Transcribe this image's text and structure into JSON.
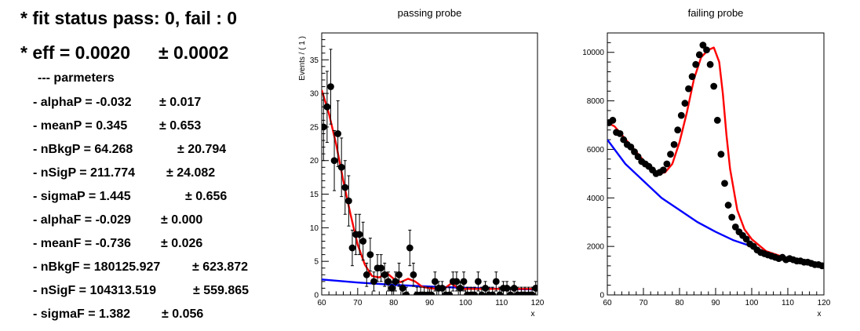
{
  "summary": {
    "fit_status": "* fit status pass: 0, fail : 0",
    "eff_label": "* eff = 0.0020",
    "eff_err": "± 0.0002",
    "params_header": "--- parmeters",
    "params": [
      {
        "label": "- alphaP = -0.032",
        "err": "± 0.017"
      },
      {
        "label": "- meanP = 0.345",
        "err": "± 0.653"
      },
      {
        "label": "- nBkgP = 64.268",
        "err": "± 20.794"
      },
      {
        "label": "- nSigP = 211.774",
        "err": "± 24.082"
      },
      {
        "label": "- sigmaP = 1.445",
        "err": "± 0.656"
      },
      {
        "label": "- alphaF = -0.029",
        "err": "± 0.000"
      },
      {
        "label": "- meanF = -0.736",
        "err": "± 0.026"
      },
      {
        "label": "- nBkgF = 180125.927",
        "err": "± 623.872"
      },
      {
        "label": "- nSigF = 104313.519",
        "err": "± 559.865"
      },
      {
        "label": "- sigmaF = 1.382",
        "err": "± 0.056"
      }
    ]
  },
  "colors": {
    "data": "#000000",
    "total_fit": "#ff0000",
    "background": "#0000ff"
  },
  "chart_data": [
    {
      "type": "scatter",
      "title": "passing probe",
      "xlabel": "x",
      "ylabel": "Events / ( 1 )",
      "xlim": [
        60,
        120
      ],
      "ylim": [
        0,
        39
      ],
      "xticks": [
        60,
        70,
        80,
        90,
        100,
        110,
        120
      ],
      "yticks": [
        0,
        5,
        10,
        15,
        20,
        25,
        30,
        35
      ],
      "grid": false,
      "series": [
        {
          "role": "data",
          "error_bars": "sqrt",
          "x": [
            60.5,
            61.5,
            62.5,
            63.5,
            64.5,
            65.5,
            66.5,
            67.5,
            68.5,
            69.5,
            70.5,
            71.5,
            72.5,
            73.5,
            74.5,
            75.5,
            76.5,
            77.5,
            78.5,
            79.5,
            80.5,
            81.5,
            82.5,
            83.5,
            84.5,
            85.5,
            86.5,
            87.5,
            88.5,
            89.5,
            90.5,
            91.5,
            92.5,
            93.5,
            94.5,
            95.5,
            96.5,
            97.5,
            98.5,
            99.5,
            100.5,
            101.5,
            102.5,
            103.5,
            104.5,
            105.5,
            106.5,
            107.5,
            108.5,
            109.5,
            110.5,
            111.5,
            112.5,
            113.5,
            114.5,
            115.5,
            116.5,
            117.5,
            118.5,
            119.5
          ],
          "y": [
            25,
            28,
            31,
            20,
            24,
            19,
            16,
            14,
            7,
            9,
            9,
            8,
            3,
            6,
            2,
            4,
            4,
            3,
            2,
            1,
            2,
            3,
            1,
            0,
            7,
            3,
            0,
            0,
            0,
            0,
            0,
            2,
            1,
            1,
            0,
            0,
            2,
            2,
            1,
            2,
            0,
            0,
            0,
            2,
            0,
            1,
            0,
            0,
            2,
            0,
            1,
            1,
            0,
            1,
            0,
            0,
            0,
            0,
            0,
            1
          ]
        },
        {
          "role": "total_fit",
          "x": [
            60,
            62,
            64,
            66,
            68,
            70,
            72,
            74,
            76,
            78,
            80,
            82,
            84,
            86,
            88,
            90,
            92,
            94,
            96,
            98,
            100,
            105,
            110,
            115,
            120
          ],
          "y": [
            30.5,
            27,
            22.5,
            17,
            12,
            7.5,
            4.5,
            2.8,
            2.6,
            3.3,
            2.4,
            1.9,
            2.4,
            2.0,
            1.2,
            1.0,
            0.9,
            0.9,
            1.7,
            1.0,
            0.9,
            0.9,
            0.9,
            0.9,
            0.9
          ]
        },
        {
          "role": "background",
          "x": [
            60,
            70,
            80,
            90,
            100,
            110,
            120
          ],
          "y": [
            2.3,
            1.85,
            1.5,
            1.25,
            1.05,
            0.9,
            0.8
          ]
        }
      ]
    },
    {
      "type": "scatter",
      "title": "failing probe",
      "xlabel": "x",
      "ylabel": "",
      "xlim": [
        60,
        120
      ],
      "ylim": [
        0,
        10800
      ],
      "xticks": [
        60,
        70,
        80,
        90,
        100,
        110,
        120
      ],
      "yticks": [
        0,
        2000,
        4000,
        6000,
        8000,
        10000
      ],
      "grid": false,
      "series": [
        {
          "role": "data",
          "error_bars": "none",
          "x": [
            60.5,
            61.5,
            62.5,
            63.5,
            64.5,
            65.5,
            66.5,
            67.5,
            68.5,
            69.5,
            70.5,
            71.5,
            72.5,
            73.5,
            74.5,
            75.5,
            76.5,
            77.5,
            78.5,
            79.5,
            80.5,
            81.5,
            82.5,
            83.5,
            84.5,
            85.5,
            86.5,
            87.5,
            88.5,
            89.5,
            90.5,
            91.5,
            92.5,
            93.5,
            94.5,
            95.5,
            96.5,
            97.5,
            98.5,
            99.5,
            100.5,
            101.5,
            102.5,
            103.5,
            104.5,
            105.5,
            106.5,
            107.5,
            108.5,
            109.5,
            110.5,
            111.5,
            112.5,
            113.5,
            114.5,
            115.5,
            116.5,
            117.5,
            118.5,
            119.5
          ],
          "y": [
            7100,
            7200,
            6700,
            6650,
            6400,
            6200,
            6100,
            5900,
            5700,
            5500,
            5400,
            5300,
            5150,
            5000,
            5050,
            5150,
            5400,
            5800,
            6200,
            6800,
            7400,
            7900,
            8500,
            9000,
            9500,
            9900,
            10300,
            10100,
            9500,
            8600,
            7200,
            5800,
            4600,
            3700,
            3200,
            2800,
            2600,
            2450,
            2300,
            2100,
            2000,
            1850,
            1750,
            1700,
            1650,
            1600,
            1550,
            1500,
            1550,
            1450,
            1500,
            1450,
            1400,
            1400,
            1350,
            1350,
            1300,
            1250,
            1250,
            1200
          ]
        },
        {
          "role": "total_fit",
          "x": [
            60,
            62,
            64,
            66,
            68,
            70,
            72,
            74,
            76,
            78,
            80,
            82,
            84,
            86,
            88,
            89.5,
            91,
            92,
            93,
            94,
            96,
            98,
            100,
            104,
            108,
            112,
            116,
            120
          ],
          "y": [
            7100,
            6950,
            6600,
            6250,
            5900,
            5550,
            5250,
            5000,
            5050,
            5400,
            6300,
            7500,
            8900,
            9800,
            10100,
            10200,
            9600,
            8300,
            6600,
            5200,
            3500,
            2700,
            2300,
            1800,
            1600,
            1450,
            1350,
            1200
          ]
        },
        {
          "role": "background",
          "x": [
            60,
            65,
            70,
            75,
            80,
            85,
            90,
            95,
            100,
            105,
            110,
            115,
            120
          ],
          "y": [
            6400,
            5400,
            4700,
            4000,
            3500,
            3000,
            2600,
            2250,
            2000,
            1700,
            1500,
            1300,
            1150
          ]
        }
      ]
    }
  ]
}
